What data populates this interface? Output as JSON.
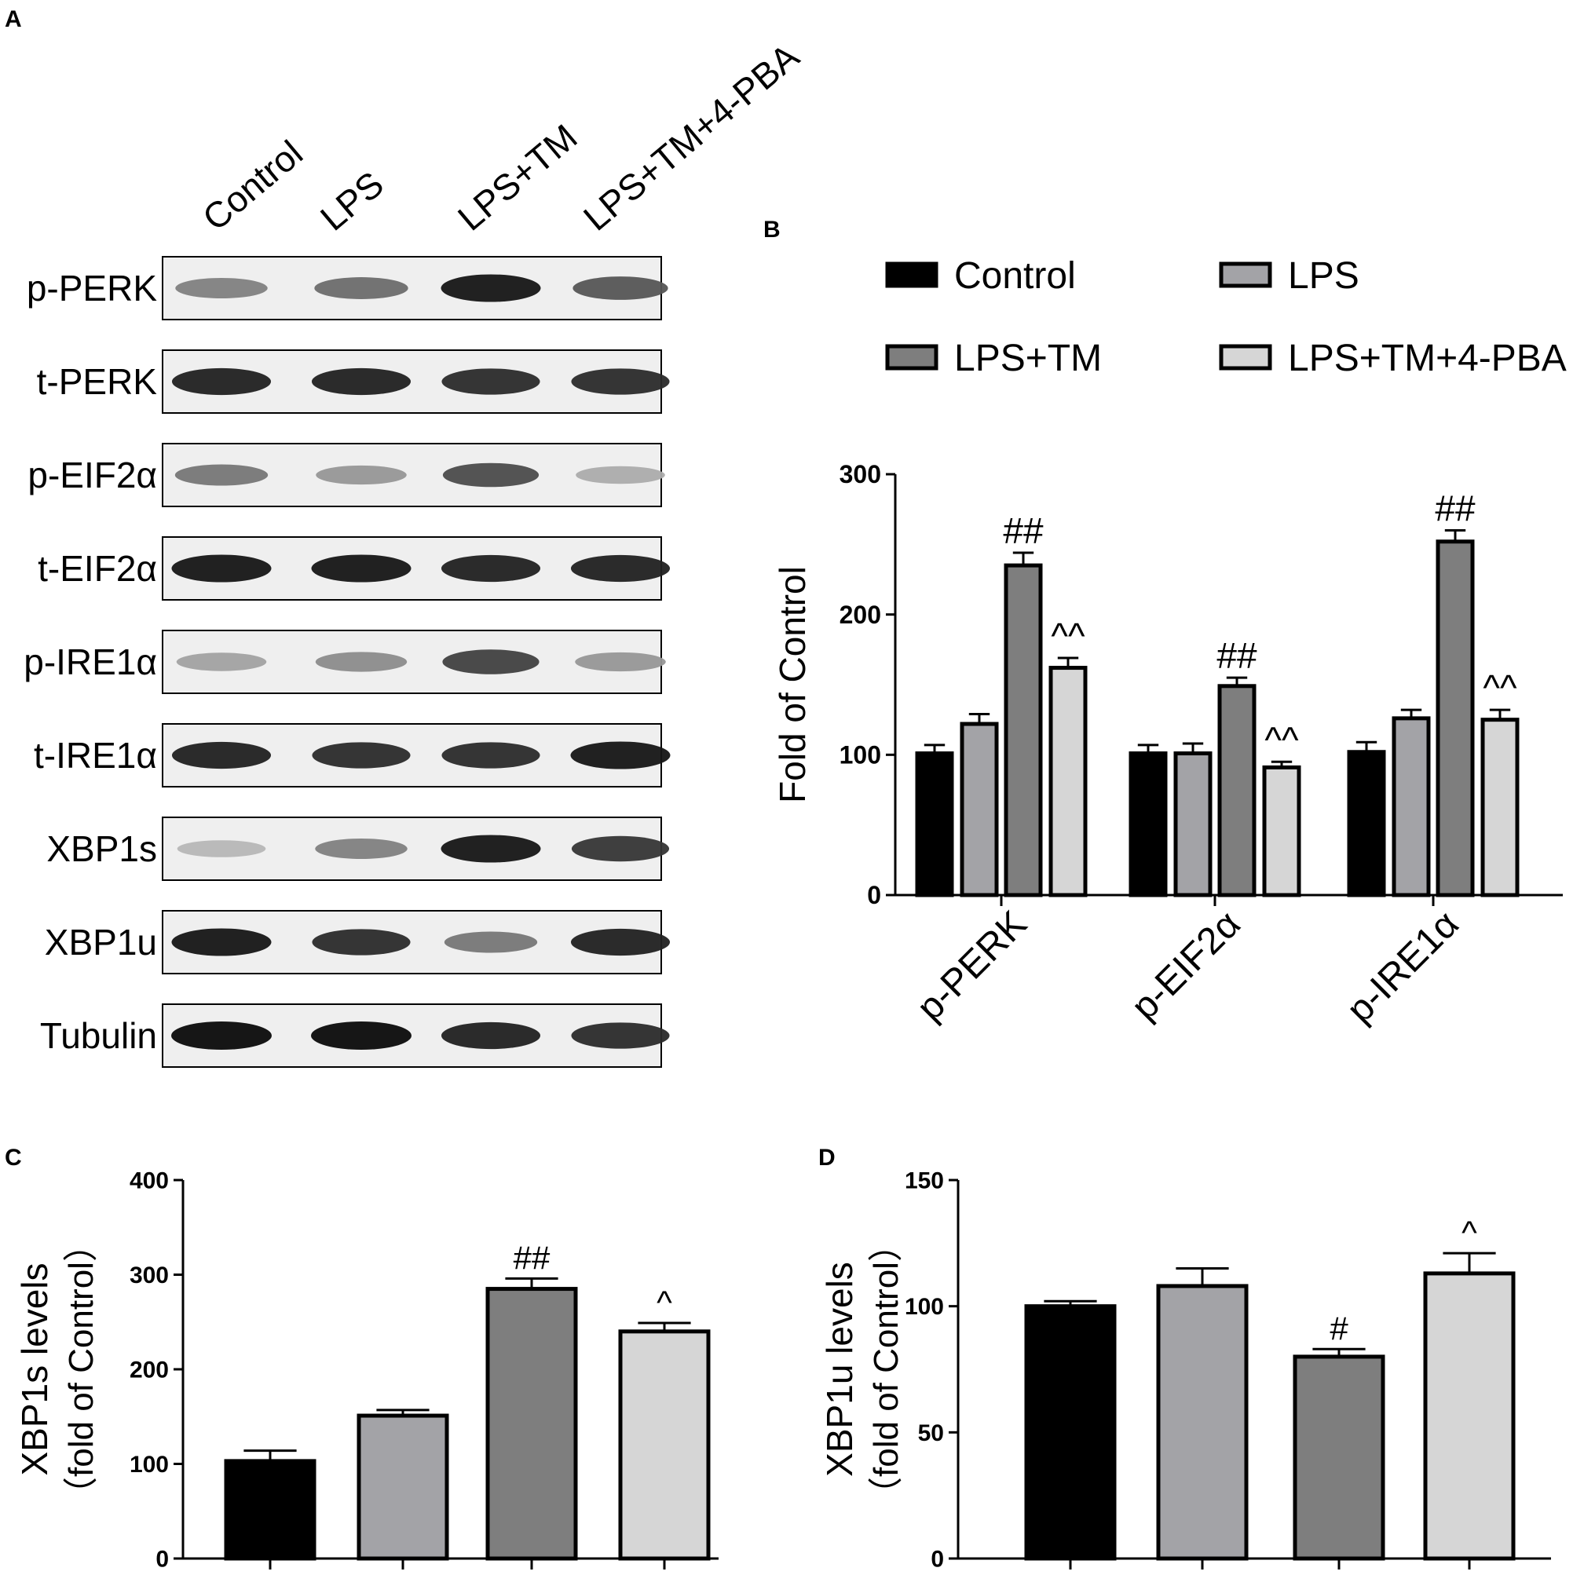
{
  "panel_labels": {
    "a": "A",
    "b": "B",
    "c": "C",
    "d": "D"
  },
  "colors": {
    "control": "#000000",
    "lps": "#a3a3a7",
    "lps_tm": "#7e7e7e",
    "lps_tm_pba": "#d6d6d6",
    "outline": "#000000"
  },
  "blot": {
    "lanes": [
      "Control",
      "LPS",
      "LPS+TM",
      "LPS+TM+4-PBA"
    ],
    "rows": [
      {
        "label": "p-PERK",
        "intensity": [
          0.45,
          0.55,
          0.95,
          0.65
        ]
      },
      {
        "label": "t-PERK",
        "intensity": [
          0.9,
          0.9,
          0.85,
          0.85
        ]
      },
      {
        "label": "p-EIF2α",
        "intensity": [
          0.5,
          0.35,
          0.7,
          0.25
        ]
      },
      {
        "label": "t-EIF2α",
        "intensity": [
          0.95,
          0.95,
          0.9,
          0.9
        ]
      },
      {
        "label": "p-IRE1α",
        "intensity": [
          0.3,
          0.4,
          0.75,
          0.35
        ]
      },
      {
        "label": "t-IRE1α",
        "intensity": [
          0.9,
          0.85,
          0.85,
          0.95
        ]
      },
      {
        "label": "XBP1s",
        "intensity": [
          0.2,
          0.45,
          0.95,
          0.8
        ]
      },
      {
        "label": "XBP1u",
        "intensity": [
          0.95,
          0.85,
          0.5,
          0.9
        ]
      },
      {
        "label": "Tubulin",
        "intensity": [
          1.0,
          1.0,
          0.9,
          0.85
        ]
      }
    ]
  },
  "chart_data": [
    {
      "panel": "B",
      "type": "bar",
      "categories": [
        "p-PERK",
        "p-EIF2α",
        "p-IRE1α"
      ],
      "series": [
        {
          "name": "Control",
          "values": [
            101,
            101,
            102
          ],
          "errors": [
            6,
            6,
            7
          ],
          "annotations": [
            "",
            "",
            ""
          ]
        },
        {
          "name": "LPS",
          "values": [
            122,
            101,
            126
          ],
          "errors": [
            7,
            7,
            6
          ],
          "annotations": [
            "",
            "",
            ""
          ]
        },
        {
          "name": "LPS+TM",
          "values": [
            235,
            149,
            252
          ],
          "errors": [
            9,
            6,
            8
          ],
          "annotations": [
            "##",
            "##",
            "##"
          ]
        },
        {
          "name": "LPS+TM+4-PBA",
          "values": [
            162,
            91,
            125
          ],
          "errors": [
            7,
            4,
            7
          ],
          "annotations": [
            "^^",
            "^^",
            "^^"
          ]
        }
      ],
      "ylabel": "Fold of Control",
      "ylim": [
        0,
        300
      ],
      "yticks": [
        0,
        100,
        200,
        300
      ],
      "legend": "top"
    },
    {
      "panel": "C",
      "type": "bar",
      "categories": [
        "Control",
        "LPS",
        "LPS+TM",
        "LPS+TM+4-PBA"
      ],
      "values": [
        103,
        151,
        285,
        240
      ],
      "errors": [
        11,
        6,
        11,
        9
      ],
      "annotations": [
        "",
        "",
        "##",
        "^"
      ],
      "ylabel_line1": "XBP1s  levels",
      "ylabel_line2": "（fold of Control）",
      "ylim": [
        0,
        400
      ],
      "yticks": [
        0,
        100,
        200,
        300,
        400
      ]
    },
    {
      "panel": "D",
      "type": "bar",
      "categories": [
        "Control",
        "LPS",
        "LPS+TM",
        "LPS+TM+4-PBA"
      ],
      "values": [
        100,
        108,
        80,
        113
      ],
      "errors": [
        2,
        7,
        3,
        8
      ],
      "annotations": [
        "",
        "",
        "#",
        "^"
      ],
      "ylabel_line1": "XBP1u  levels",
      "ylabel_line2": "（fold of Control）",
      "ylim": [
        0,
        150
      ],
      "yticks": [
        0,
        50,
        100,
        150
      ]
    }
  ]
}
